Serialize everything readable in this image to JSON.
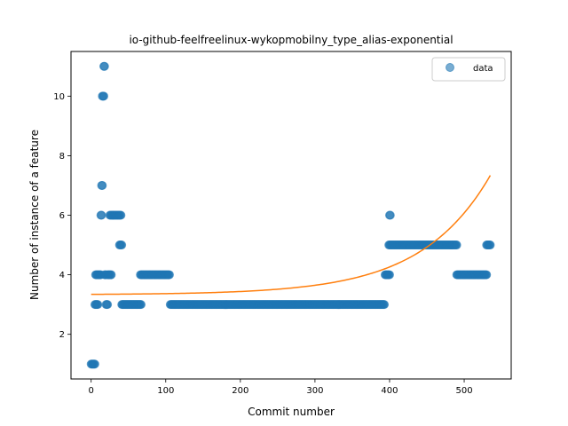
{
  "chart_data": {
    "type": "scatter",
    "title": "io-github-feelfreelinux-wykopmobilny_type_alias-exponential",
    "xlabel": "Commit number",
    "ylabel": "Number of instance of a feature",
    "xlim": [
      -27,
      563
    ],
    "ylim": [
      0.5,
      11.5
    ],
    "xticks": [
      0,
      100,
      200,
      300,
      400,
      500
    ],
    "yticks": [
      2,
      4,
      6,
      8,
      10
    ],
    "grid": false,
    "legend": {
      "placement": "top-right",
      "entries": [
        "data"
      ]
    },
    "colors": {
      "points": "#1f77b4",
      "fit": "#ff7f0e"
    },
    "series": [
      {
        "name": "data",
        "kind": "scatter",
        "segments": [
          {
            "x_start": 0,
            "x_end": 5,
            "y": 1
          },
          {
            "x_start": 5,
            "x_end": 9,
            "y": 3
          },
          {
            "x_start": 6,
            "x_end": 13,
            "y": 4
          },
          {
            "x_start": 13,
            "x_end": 14,
            "y": 6
          },
          {
            "x_start": 14,
            "x_end": 15,
            "y": 7
          },
          {
            "x_start": 15,
            "x_end": 17,
            "y": 10
          },
          {
            "x_start": 17,
            "x_end": 18,
            "y": 11
          },
          {
            "x_start": 18,
            "x_end": 20,
            "y": 4
          },
          {
            "x_start": 20,
            "x_end": 22,
            "y": 3
          },
          {
            "x_start": 22,
            "x_end": 27,
            "y": 4
          },
          {
            "x_start": 25,
            "x_end": 40,
            "y": 6
          },
          {
            "x_start": 38,
            "x_end": 41,
            "y": 5
          },
          {
            "x_start": 41,
            "x_end": 67,
            "y": 3
          },
          {
            "x_start": 66,
            "x_end": 105,
            "y": 4
          },
          {
            "x_start": 106,
            "x_end": 393,
            "y": 3
          },
          {
            "x_start": 394,
            "x_end": 400,
            "y": 4
          },
          {
            "x_start": 399,
            "x_end": 400,
            "y": 5
          },
          {
            "x_start": 400,
            "x_end": 401,
            "y": 6
          },
          {
            "x_start": 401,
            "x_end": 490,
            "y": 5
          },
          {
            "x_start": 490,
            "x_end": 530,
            "y": 4
          },
          {
            "x_start": 530,
            "x_end": 535,
            "y": 5
          }
        ]
      },
      {
        "name": "",
        "kind": "line",
        "fit": {
          "form": "a*exp(b*x)+c",
          "a": 0.0124,
          "b": 0.0108,
          "c": 3.33
        },
        "x_range": [
          0,
          535
        ]
      }
    ]
  }
}
